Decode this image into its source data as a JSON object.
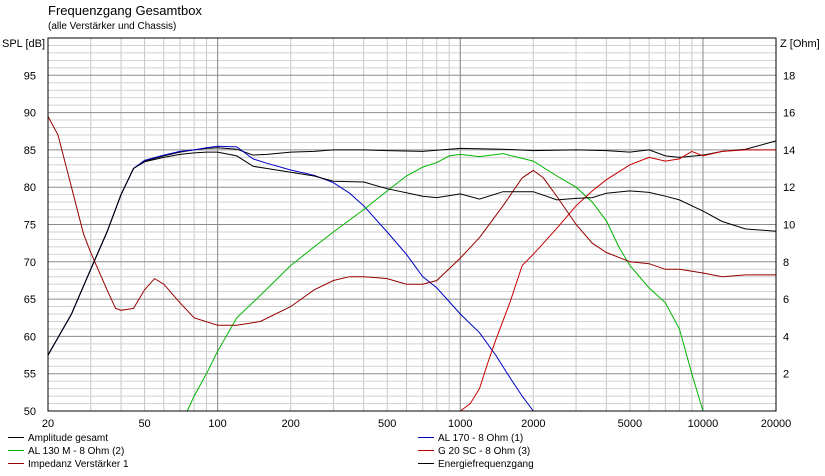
{
  "chart_data": {
    "type": "line",
    "title": "Frequenzgang Gesamtbox",
    "subtitle": "(alle Verstärker und Chassis)",
    "ylabel": "SPL [dB]",
    "ylabel_right": "Z [Ohm]",
    "xscale": "log",
    "xlim": [
      20,
      20000
    ],
    "ylim": [
      50,
      100
    ],
    "ylim_right": [
      0,
      20
    ],
    "x_ticks": [
      20,
      50,
      100,
      200,
      500,
      1000,
      2000,
      5000,
      10000,
      20000
    ],
    "x_tick_labels": [
      "20",
      "50",
      "100",
      "200",
      "500",
      "1000",
      "2000",
      "5000",
      "10000",
      "20000"
    ],
    "y_ticks": [
      50,
      55,
      60,
      65,
      70,
      75,
      80,
      85,
      90,
      95
    ],
    "y_tick_labels": [
      "50",
      "55",
      "60",
      "65",
      "70",
      "75",
      "80",
      "85",
      "90",
      "95"
    ],
    "y_ticks_right": [
      2,
      4,
      6,
      8,
      10,
      12,
      14,
      16,
      18
    ],
    "y_tick_labels_right": [
      "2",
      "4",
      "6",
      "8",
      "10",
      "12",
      "14",
      "16",
      "18"
    ],
    "grid": true,
    "legend_position": "bottom",
    "series": [
      {
        "name": "Amplitude gesamt",
        "color": "#000000",
        "axis": "left",
        "x": [
          20,
          25,
          30,
          35,
          40,
          45,
          50,
          60,
          70,
          80,
          90,
          100,
          120,
          140,
          160,
          200,
          250,
          300,
          400,
          500,
          700,
          1000,
          1500,
          2000,
          3000,
          4000,
          5000,
          6000,
          7000,
          8000,
          10000,
          12000,
          15000,
          20000
        ],
        "y": [
          57.5,
          63,
          69,
          74,
          79,
          82.5,
          83.5,
          84.2,
          84.7,
          85.0,
          85.2,
          85.3,
          85.1,
          84.3,
          84.4,
          84.7,
          84.8,
          85,
          85,
          84.9,
          84.8,
          85.2,
          85.1,
          84.9,
          85,
          84.9,
          84.7,
          85.0,
          84.2,
          84.0,
          84.3,
          84.8,
          85.1,
          86.2
        ]
      },
      {
        "name": "AL 170 - 8 Ohm (1)",
        "color": "#0000c8",
        "axis": "left",
        "x": [
          20,
          25,
          30,
          35,
          40,
          45,
          50,
          60,
          70,
          80,
          90,
          100,
          120,
          140,
          160,
          200,
          250,
          300,
          350,
          400,
          500,
          600,
          700,
          800,
          1000,
          1200,
          1400,
          1600,
          1800,
          2000
        ],
        "y": [
          57.5,
          63,
          69,
          74,
          79,
          82.5,
          83.6,
          84.3,
          84.8,
          85.0,
          85.3,
          85.5,
          85.4,
          83.8,
          83.2,
          82.3,
          81.6,
          80.6,
          79.2,
          77.5,
          74,
          71,
          68,
          66.5,
          63,
          60.5,
          57.5,
          54.5,
          52,
          50
        ]
      },
      {
        "name": "AL 130 M - 8 Ohm (2)",
        "color": "#00b400",
        "axis": "left",
        "x": [
          20,
          70,
          75,
          80,
          90,
          100,
          120,
          150,
          200,
          250,
          300,
          400,
          500,
          600,
          700,
          800,
          900,
          1000,
          1200,
          1500,
          2000,
          2500,
          3000,
          3500,
          4000,
          4500,
          5000,
          6000,
          7000,
          8000,
          9000,
          10000,
          20000
        ],
        "y": [
          50,
          50,
          50,
          52,
          55,
          58,
          62.5,
          65.5,
          69.5,
          72,
          74,
          77,
          79.5,
          81.5,
          82.7,
          83.3,
          84.2,
          84.4,
          84.1,
          84.5,
          83.5,
          81.5,
          80,
          78,
          75.5,
          72,
          69.5,
          66.5,
          64.5,
          61,
          55,
          50,
          50
        ]
      },
      {
        "name": "G 20 SC - 8 Ohm (3)",
        "color": "#c80000",
        "axis": "left",
        "x": [
          20,
          1000,
          1100,
          1200,
          1300,
          1400,
          1600,
          1800,
          2000,
          2200,
          2500,
          3000,
          3500,
          4000,
          5000,
          6000,
          7000,
          8000,
          9000,
          10000,
          12000,
          15000,
          20000
        ],
        "y": [
          50,
          50,
          51,
          53,
          56.5,
          59.5,
          64.5,
          69.5,
          71,
          72.5,
          74.5,
          77.5,
          79.5,
          81,
          83,
          84,
          83.5,
          83.8,
          84.8,
          84.2,
          84.8,
          85,
          85
        ]
      },
      {
        "name": "Impedanz Verstärker 1",
        "color": "#960000",
        "axis": "right",
        "x": [
          20,
          22,
          25,
          28,
          30,
          35,
          38,
          40,
          45,
          50,
          55,
          60,
          70,
          80,
          100,
          120,
          150,
          200,
          250,
          300,
          350,
          400,
          500,
          600,
          700,
          800,
          1000,
          1200,
          1500,
          1800,
          2000,
          2200,
          2500,
          3000,
          3500,
          4000,
          5000,
          6000,
          7000,
          8000,
          10000,
          12000,
          15000,
          20000
        ],
        "y": [
          15.8,
          14.8,
          12,
          9.5,
          8.5,
          6.5,
          5.5,
          5.4,
          5.5,
          6.5,
          7.1,
          6.8,
          5.8,
          5.0,
          4.6,
          4.6,
          4.8,
          5.6,
          6.5,
          7.0,
          7.2,
          7.2,
          7.1,
          6.8,
          6.8,
          7.0,
          8.2,
          9.3,
          11.0,
          12.5,
          12.9,
          12.5,
          11.5,
          10.0,
          9.0,
          8.5,
          8.0,
          7.9,
          7.6,
          7.6,
          7.4,
          7.2,
          7.3,
          7.3
        ]
      },
      {
        "name": "Energiefrequenzgang",
        "color": "#000000",
        "axis": "left",
        "x": [
          20,
          25,
          30,
          35,
          40,
          45,
          50,
          60,
          70,
          80,
          90,
          100,
          120,
          140,
          160,
          200,
          250,
          300,
          400,
          500,
          700,
          800,
          1000,
          1200,
          1500,
          2000,
          2500,
          3000,
          3500,
          4000,
          5000,
          6000,
          7000,
          8000,
          10000,
          12000,
          15000,
          20000
        ],
        "y": [
          57.5,
          63,
          69,
          74,
          79,
          82.5,
          83.4,
          84.0,
          84.4,
          84.6,
          84.7,
          84.7,
          84.2,
          82.8,
          82.5,
          82,
          81.5,
          80.8,
          80.7,
          79.8,
          78.8,
          78.6,
          79.1,
          78.4,
          79.4,
          79.4,
          78.3,
          78.5,
          78.6,
          79.2,
          79.5,
          79.3,
          78.8,
          78.3,
          76.8,
          75.4,
          74.4,
          74.1
        ]
      }
    ]
  }
}
